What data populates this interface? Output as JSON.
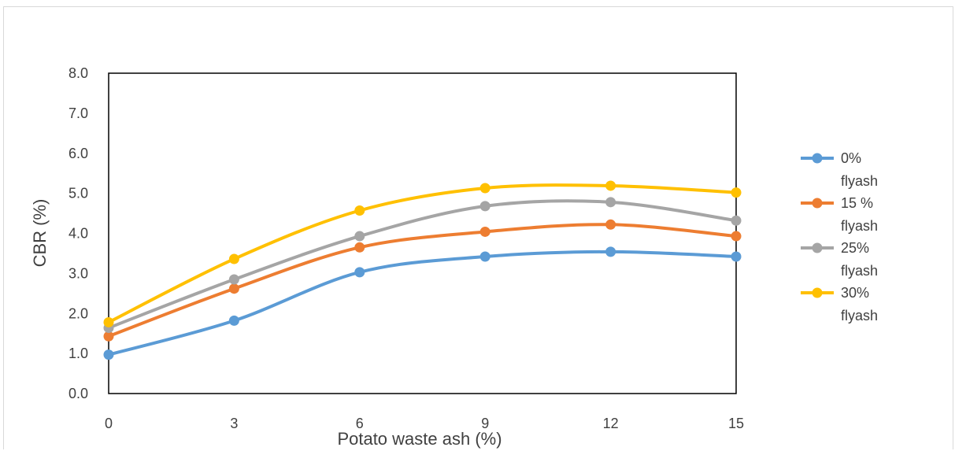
{
  "chart_data": {
    "type": "line",
    "title": "",
    "xlabel": "Potato waste ash (%)",
    "ylabel": "CBR (%)",
    "x": [
      0,
      3,
      6,
      9,
      12,
      15
    ],
    "x_tick_labels": [
      "0",
      "3",
      "6",
      "9",
      "12",
      "15"
    ],
    "ylim": [
      0,
      8
    ],
    "y_tick_labels": [
      "0.0",
      "1.0",
      "2.0",
      "3.0",
      "4.0",
      "5.0",
      "6.0",
      "7.0",
      "8.0"
    ],
    "grid": false,
    "legend_position": "right",
    "smooth": true,
    "series": [
      {
        "name_line1": "0%",
        "name_line2": "flyash",
        "color": "#5b9bd5",
        "values": [
          0.97,
          1.82,
          3.03,
          3.42,
          3.54,
          3.42
        ]
      },
      {
        "name_line1": "15 %",
        "name_line2": "flyash",
        "color": "#ed7d31",
        "values": [
          1.43,
          2.62,
          3.65,
          4.04,
          4.22,
          3.93
        ]
      },
      {
        "name_line1": "25%",
        "name_line2": "flyash",
        "color": "#a5a5a5",
        "values": [
          1.64,
          2.85,
          3.93,
          4.68,
          4.78,
          4.32
        ]
      },
      {
        "name_line1": "30%",
        "name_line2": "flyash",
        "color": "#ffc000",
        "values": [
          1.78,
          3.36,
          4.57,
          5.13,
          5.19,
          5.02
        ]
      }
    ]
  }
}
